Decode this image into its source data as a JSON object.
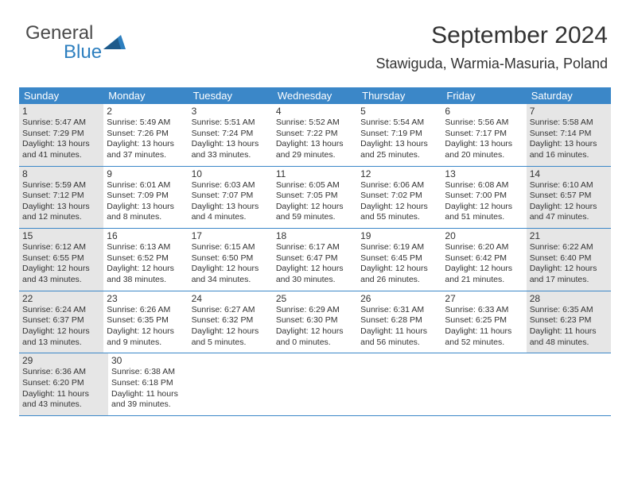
{
  "logo": {
    "text_general": "General",
    "text_blue": "Blue"
  },
  "title": "September 2024",
  "location": "Stawiguda, Warmia-Masuria, Poland",
  "colors": {
    "header_bg": "#3b87c8",
    "header_text": "#ffffff",
    "shaded_bg": "#e6e6e6",
    "border": "#3b87c8",
    "text": "#333333",
    "logo_gray": "#4a4a4a",
    "logo_blue": "#2d7fbf"
  },
  "day_headers": [
    "Sunday",
    "Monday",
    "Tuesday",
    "Wednesday",
    "Thursday",
    "Friday",
    "Saturday"
  ],
  "weeks": [
    [
      {
        "num": "1",
        "shaded": true,
        "sunrise": "Sunrise: 5:47 AM",
        "sunset": "Sunset: 7:29 PM",
        "day1": "Daylight: 13 hours",
        "day2": "and 41 minutes."
      },
      {
        "num": "2",
        "shaded": false,
        "sunrise": "Sunrise: 5:49 AM",
        "sunset": "Sunset: 7:26 PM",
        "day1": "Daylight: 13 hours",
        "day2": "and 37 minutes."
      },
      {
        "num": "3",
        "shaded": false,
        "sunrise": "Sunrise: 5:51 AM",
        "sunset": "Sunset: 7:24 PM",
        "day1": "Daylight: 13 hours",
        "day2": "and 33 minutes."
      },
      {
        "num": "4",
        "shaded": false,
        "sunrise": "Sunrise: 5:52 AM",
        "sunset": "Sunset: 7:22 PM",
        "day1": "Daylight: 13 hours",
        "day2": "and 29 minutes."
      },
      {
        "num": "5",
        "shaded": false,
        "sunrise": "Sunrise: 5:54 AM",
        "sunset": "Sunset: 7:19 PM",
        "day1": "Daylight: 13 hours",
        "day2": "and 25 minutes."
      },
      {
        "num": "6",
        "shaded": false,
        "sunrise": "Sunrise: 5:56 AM",
        "sunset": "Sunset: 7:17 PM",
        "day1": "Daylight: 13 hours",
        "day2": "and 20 minutes."
      },
      {
        "num": "7",
        "shaded": true,
        "sunrise": "Sunrise: 5:58 AM",
        "sunset": "Sunset: 7:14 PM",
        "day1": "Daylight: 13 hours",
        "day2": "and 16 minutes."
      }
    ],
    [
      {
        "num": "8",
        "shaded": true,
        "sunrise": "Sunrise: 5:59 AM",
        "sunset": "Sunset: 7:12 PM",
        "day1": "Daylight: 13 hours",
        "day2": "and 12 minutes."
      },
      {
        "num": "9",
        "shaded": false,
        "sunrise": "Sunrise: 6:01 AM",
        "sunset": "Sunset: 7:09 PM",
        "day1": "Daylight: 13 hours",
        "day2": "and 8 minutes."
      },
      {
        "num": "10",
        "shaded": false,
        "sunrise": "Sunrise: 6:03 AM",
        "sunset": "Sunset: 7:07 PM",
        "day1": "Daylight: 13 hours",
        "day2": "and 4 minutes."
      },
      {
        "num": "11",
        "shaded": false,
        "sunrise": "Sunrise: 6:05 AM",
        "sunset": "Sunset: 7:05 PM",
        "day1": "Daylight: 12 hours",
        "day2": "and 59 minutes."
      },
      {
        "num": "12",
        "shaded": false,
        "sunrise": "Sunrise: 6:06 AM",
        "sunset": "Sunset: 7:02 PM",
        "day1": "Daylight: 12 hours",
        "day2": "and 55 minutes."
      },
      {
        "num": "13",
        "shaded": false,
        "sunrise": "Sunrise: 6:08 AM",
        "sunset": "Sunset: 7:00 PM",
        "day1": "Daylight: 12 hours",
        "day2": "and 51 minutes."
      },
      {
        "num": "14",
        "shaded": true,
        "sunrise": "Sunrise: 6:10 AM",
        "sunset": "Sunset: 6:57 PM",
        "day1": "Daylight: 12 hours",
        "day2": "and 47 minutes."
      }
    ],
    [
      {
        "num": "15",
        "shaded": true,
        "sunrise": "Sunrise: 6:12 AM",
        "sunset": "Sunset: 6:55 PM",
        "day1": "Daylight: 12 hours",
        "day2": "and 43 minutes."
      },
      {
        "num": "16",
        "shaded": false,
        "sunrise": "Sunrise: 6:13 AM",
        "sunset": "Sunset: 6:52 PM",
        "day1": "Daylight: 12 hours",
        "day2": "and 38 minutes."
      },
      {
        "num": "17",
        "shaded": false,
        "sunrise": "Sunrise: 6:15 AM",
        "sunset": "Sunset: 6:50 PM",
        "day1": "Daylight: 12 hours",
        "day2": "and 34 minutes."
      },
      {
        "num": "18",
        "shaded": false,
        "sunrise": "Sunrise: 6:17 AM",
        "sunset": "Sunset: 6:47 PM",
        "day1": "Daylight: 12 hours",
        "day2": "and 30 minutes."
      },
      {
        "num": "19",
        "shaded": false,
        "sunrise": "Sunrise: 6:19 AM",
        "sunset": "Sunset: 6:45 PM",
        "day1": "Daylight: 12 hours",
        "day2": "and 26 minutes."
      },
      {
        "num": "20",
        "shaded": false,
        "sunrise": "Sunrise: 6:20 AM",
        "sunset": "Sunset: 6:42 PM",
        "day1": "Daylight: 12 hours",
        "day2": "and 21 minutes."
      },
      {
        "num": "21",
        "shaded": true,
        "sunrise": "Sunrise: 6:22 AM",
        "sunset": "Sunset: 6:40 PM",
        "day1": "Daylight: 12 hours",
        "day2": "and 17 minutes."
      }
    ],
    [
      {
        "num": "22",
        "shaded": true,
        "sunrise": "Sunrise: 6:24 AM",
        "sunset": "Sunset: 6:37 PM",
        "day1": "Daylight: 12 hours",
        "day2": "and 13 minutes."
      },
      {
        "num": "23",
        "shaded": false,
        "sunrise": "Sunrise: 6:26 AM",
        "sunset": "Sunset: 6:35 PM",
        "day1": "Daylight: 12 hours",
        "day2": "and 9 minutes."
      },
      {
        "num": "24",
        "shaded": false,
        "sunrise": "Sunrise: 6:27 AM",
        "sunset": "Sunset: 6:32 PM",
        "day1": "Daylight: 12 hours",
        "day2": "and 5 minutes."
      },
      {
        "num": "25",
        "shaded": false,
        "sunrise": "Sunrise: 6:29 AM",
        "sunset": "Sunset: 6:30 PM",
        "day1": "Daylight: 12 hours",
        "day2": "and 0 minutes."
      },
      {
        "num": "26",
        "shaded": false,
        "sunrise": "Sunrise: 6:31 AM",
        "sunset": "Sunset: 6:28 PM",
        "day1": "Daylight: 11 hours",
        "day2": "and 56 minutes."
      },
      {
        "num": "27",
        "shaded": false,
        "sunrise": "Sunrise: 6:33 AM",
        "sunset": "Sunset: 6:25 PM",
        "day1": "Daylight: 11 hours",
        "day2": "and 52 minutes."
      },
      {
        "num": "28",
        "shaded": true,
        "sunrise": "Sunrise: 6:35 AM",
        "sunset": "Sunset: 6:23 PM",
        "day1": "Daylight: 11 hours",
        "day2": "and 48 minutes."
      }
    ],
    [
      {
        "num": "29",
        "shaded": true,
        "sunrise": "Sunrise: 6:36 AM",
        "sunset": "Sunset: 6:20 PM",
        "day1": "Daylight: 11 hours",
        "day2": "and 43 minutes."
      },
      {
        "num": "30",
        "shaded": false,
        "sunrise": "Sunrise: 6:38 AM",
        "sunset": "Sunset: 6:18 PM",
        "day1": "Daylight: 11 hours",
        "day2": "and 39 minutes."
      },
      null,
      null,
      null,
      null,
      null
    ]
  ]
}
